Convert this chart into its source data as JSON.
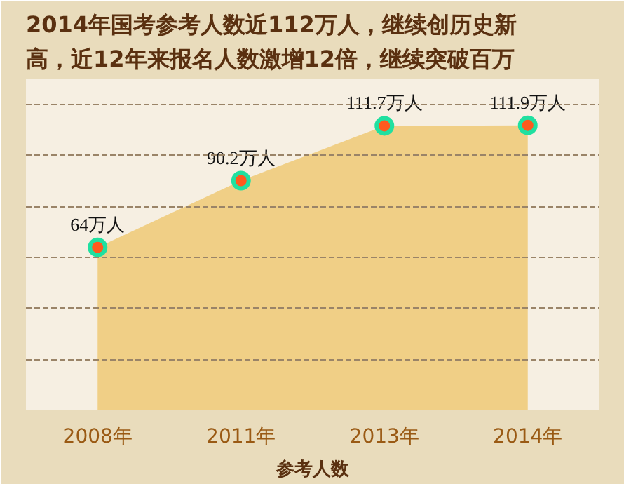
{
  "chart_data": {
    "type": "area",
    "title": "2014年国考参考人数近112万人，继续创历史新高，近12年来报名人数激增12倍，继续突破百万",
    "xlabel": "参考人数",
    "categories": [
      "2008年",
      "2011年",
      "2013年",
      "2014年"
    ],
    "series": [
      {
        "color": "#f0cf86",
        "values": [
          64,
          90.2,
          111.7,
          111.9
        ],
        "value_labels": [
          "64万人",
          "90.2万人",
          "111.7万人",
          "111.9万人"
        ]
      }
    ],
    "ylim": [
      0,
      130
    ],
    "yticks": [
      {
        "value": 20,
        "label": null
      },
      {
        "value": 40,
        "label": null
      },
      {
        "value": 60,
        "label": null
      },
      {
        "value": 80,
        "label": null
      },
      {
        "value": 100,
        "label": null
      },
      {
        "value": 120,
        "label": null
      }
    ],
    "marker": "circle",
    "grid": "y",
    "tick_labels": "x"
  }
}
